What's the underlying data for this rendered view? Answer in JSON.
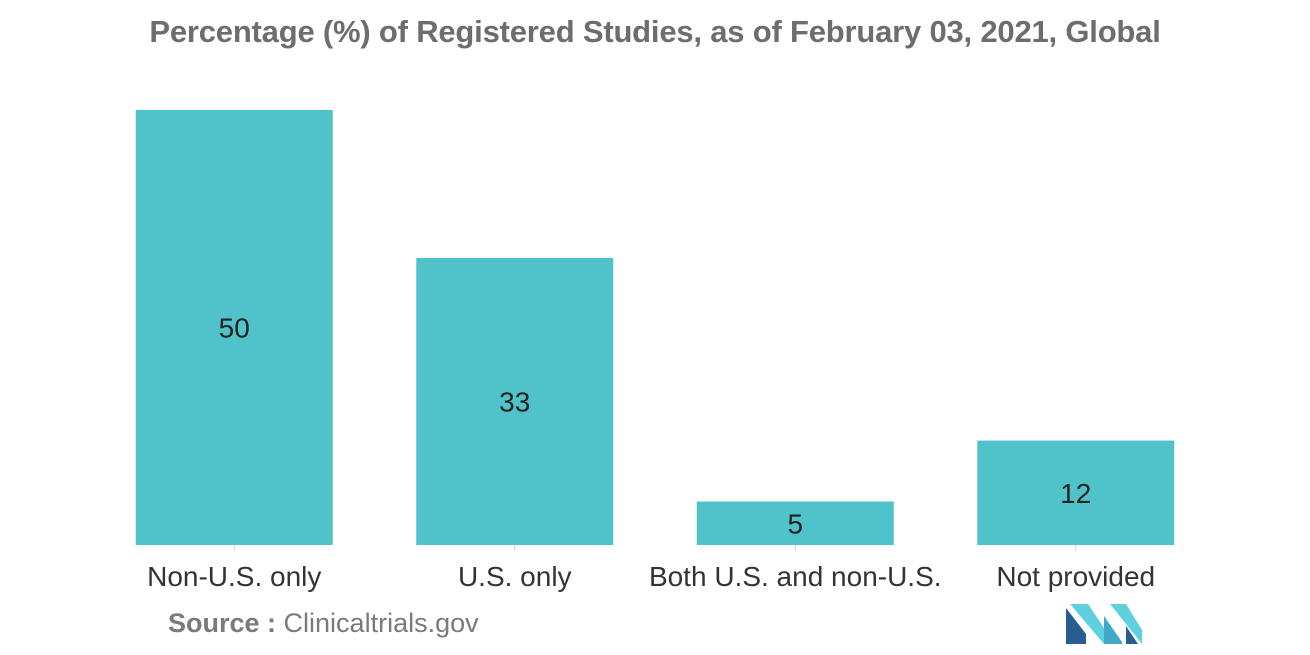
{
  "title": "Percentage (%) of Registered Studies, as of February 03, 2021, Global",
  "chart_data": {
    "type": "bar",
    "title": "Percentage (%) of Registered Studies, as of February 03, 2021, Global",
    "categories": [
      "Non-U.S. only",
      "U.S. only",
      "Both U.S. and non-U.S.",
      "Not provided"
    ],
    "values": [
      50,
      33,
      5,
      12
    ],
    "data_labels": [
      "50",
      "33",
      "5",
      "12"
    ],
    "xlabel": "",
    "ylabel": "",
    "ylim": [
      0,
      50
    ],
    "grid": false,
    "legend": "none",
    "bar_color": "#4fc3c9"
  },
  "source": {
    "label": "Source :",
    "text": "Clinicaltrials.gov"
  },
  "logo": {
    "icon": "mordor-intelligence-logo-icon",
    "colors": [
      "#2a5d8f",
      "#3fa9c9",
      "#5fd0e0"
    ]
  }
}
